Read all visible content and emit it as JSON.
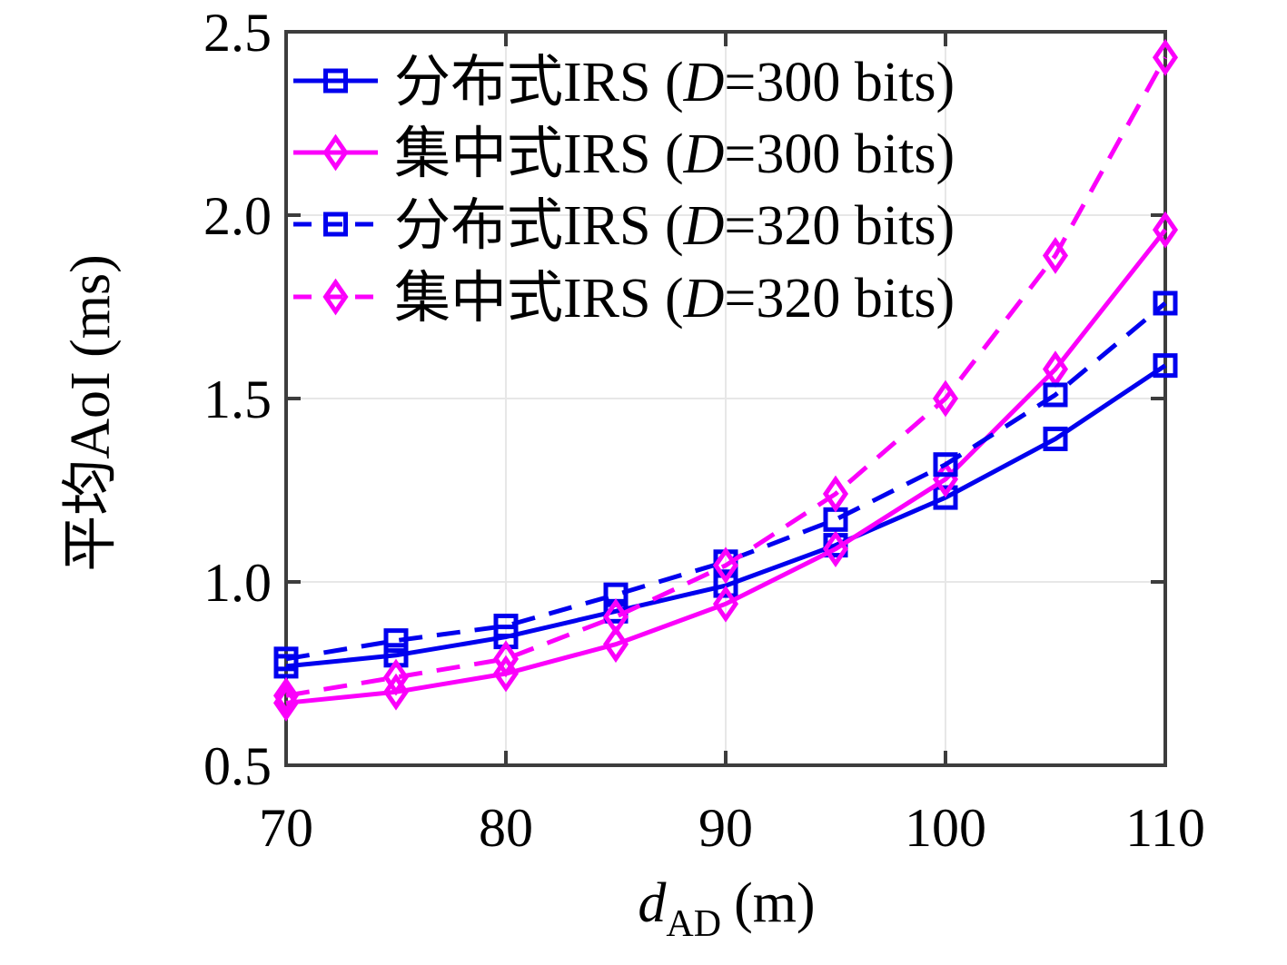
{
  "figure": {
    "background": "#ffffff",
    "frame_color": "#3d3d3d",
    "grid_color": "#e7e7e7",
    "tick_color": "#3d3d3d",
    "blue": "#0000ee",
    "magenta": "#fb00fb"
  },
  "chart_data": {
    "type": "line",
    "title": "",
    "xlabel": {
      "var": "d",
      "sub": "AD",
      "unit": "(m)"
    },
    "ylabel": "平均AoI (ms)",
    "xlim": [
      70,
      110
    ],
    "ylim": [
      0.5,
      2.5
    ],
    "xticks": [
      70,
      80,
      90,
      100,
      110
    ],
    "xtick_labels": [
      "70",
      "80",
      "90",
      "100",
      "110"
    ],
    "yticks": [
      0.5,
      1.0,
      1.5,
      2.0,
      2.5
    ],
    "ytick_labels": [
      "0.5",
      "1.0",
      "1.5",
      "2.0",
      "2.5"
    ],
    "grid": true,
    "legend_position": "top-left",
    "x": [
      70,
      75,
      80,
      85,
      90,
      95,
      100,
      105,
      110
    ],
    "series": [
      {
        "name": "分布式IRS (D=300 bits)",
        "label_prefix": "分布式IRS (",
        "label_var": "D",
        "label_suffix": "=300 bits)",
        "color": "#0000ee",
        "dash": "solid",
        "marker": "square",
        "values": [
          0.77,
          0.8,
          0.85,
          0.92,
          0.99,
          1.1,
          1.23,
          1.39,
          1.59
        ]
      },
      {
        "name": "集中式IRS (D=300 bits)",
        "label_prefix": "集中式IRS (",
        "label_var": "D",
        "label_suffix": "=300 bits)",
        "color": "#fb00fb",
        "dash": "solid",
        "marker": "diamond",
        "values": [
          0.67,
          0.7,
          0.75,
          0.83,
          0.94,
          1.09,
          1.28,
          1.58,
          1.96
        ]
      },
      {
        "name": "分布式IRS (D=320 bits)",
        "label_prefix": "分布式IRS (",
        "label_var": "D",
        "label_suffix": "=320 bits)",
        "color": "#0000ee",
        "dash": "dashed",
        "marker": "square",
        "values": [
          0.79,
          0.84,
          0.88,
          0.965,
          1.055,
          1.17,
          1.32,
          1.51,
          1.76
        ]
      },
      {
        "name": "集中式IRS (D=320 bits)",
        "label_prefix": "集中式IRS (",
        "label_var": "D",
        "label_suffix": "=320 bits)",
        "color": "#fb00fb",
        "dash": "dashed",
        "marker": "diamond",
        "values": [
          0.69,
          0.74,
          0.79,
          0.905,
          1.045,
          1.24,
          1.5,
          1.89,
          2.43
        ]
      }
    ]
  }
}
